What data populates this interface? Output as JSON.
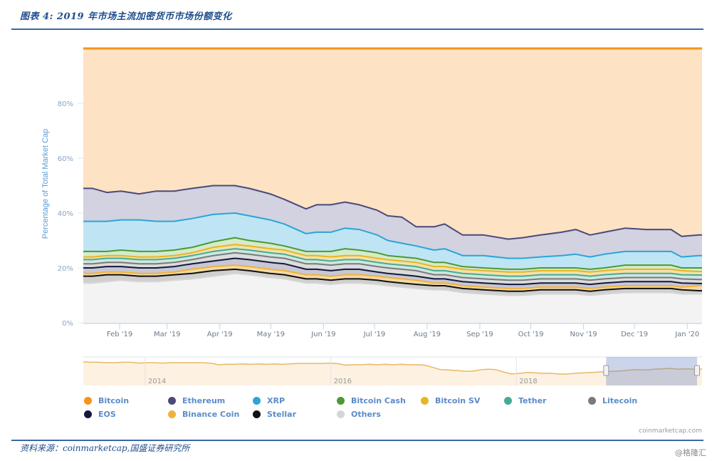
{
  "header": {
    "figure_title": "图表 4: 2019 年市场主流加密货币市场份额变化"
  },
  "footer": {
    "source": "资料来源：coinmarketcap,国盛证券研究所",
    "credit": "coinmarketcap.com",
    "watermark": "@格隆汇"
  },
  "chart_data": {
    "type": "area",
    "stacking": "percent",
    "title": "",
    "xlabel": "",
    "ylabel": "Percentage of Total Market Cap",
    "ylim": [
      0,
      100
    ],
    "yticks": [
      "0%",
      "20%",
      "40%",
      "60%",
      "80%"
    ],
    "y_tick_values": [
      0,
      20,
      40,
      60,
      80
    ],
    "grid": true,
    "legend_position": "bottom",
    "x_range": [
      "2019-01-15",
      "2020-01-08"
    ],
    "xticks": [
      "Feb '19",
      "Mar '19",
      "Apr '19",
      "May '19",
      "Jun '19",
      "Jul '19",
      "Aug '19",
      "Sep '19",
      "Oct '19",
      "Nov '19",
      "Dec '19",
      "Jan '20"
    ],
    "x_tick_positions": [
      0.0588,
      0.1355,
      0.2206,
      0.303,
      0.3882,
      0.4706,
      0.5557,
      0.6409,
      0.7233,
      0.8085,
      0.8908,
      0.9761
    ],
    "x": [
      0.015,
      0.038,
      0.061,
      0.09,
      0.118,
      0.147,
      0.176,
      0.21,
      0.245,
      0.268,
      0.302,
      0.325,
      0.36,
      0.377,
      0.4,
      0.423,
      0.446,
      0.475,
      0.492,
      0.515,
      0.538,
      0.567,
      0.584,
      0.613,
      0.647,
      0.687,
      0.71,
      0.739,
      0.773,
      0.796,
      0.819,
      0.842,
      0.876,
      0.91,
      0.95,
      0.967,
      0.995
    ],
    "series_order_bottom_to_top": [
      "Others",
      "Stellar",
      "Binance Coin",
      "EOS",
      "Litecoin",
      "Tether",
      "Bitcoin SV",
      "Bitcoin Cash",
      "XRP",
      "Ethereum",
      "Bitcoin"
    ],
    "cumulative_tops": {
      "Others": [
        14.5,
        15.0,
        15.5,
        15.0,
        15.0,
        15.5,
        16.0,
        17.0,
        18.0,
        17.5,
        16.5,
        16.0,
        14.5,
        14.5,
        14.0,
        14.5,
        14.5,
        14.0,
        13.5,
        13.0,
        12.5,
        12.0,
        12.0,
        11.0,
        10.5,
        10.0,
        10.0,
        10.5,
        10.5,
        10.5,
        10.0,
        10.5,
        11.0,
        11.0,
        11.0,
        10.5,
        10.5
      ],
      "Stellar": [
        17.0,
        17.5,
        17.5,
        17.0,
        17.0,
        17.5,
        18.0,
        19.0,
        19.5,
        19.0,
        18.0,
        17.5,
        16.0,
        16.0,
        15.5,
        16.0,
        16.0,
        15.5,
        15.0,
        14.5,
        14.0,
        13.5,
        13.5,
        12.5,
        12.0,
        11.5,
        11.5,
        12.0,
        12.0,
        12.0,
        11.5,
        12.0,
        12.5,
        12.5,
        12.5,
        12.0,
        11.7
      ],
      "Binance Coin": [
        18.0,
        18.5,
        18.5,
        18.0,
        18.0,
        18.5,
        19.5,
        20.5,
        21.0,
        20.5,
        19.5,
        19.0,
        17.5,
        17.5,
        17.0,
        17.5,
        17.5,
        17.0,
        16.5,
        16.0,
        15.5,
        14.5,
        14.5,
        13.5,
        13.0,
        12.5,
        12.5,
        13.0,
        13.0,
        13.0,
        12.5,
        13.0,
        13.5,
        13.5,
        13.5,
        13.0,
        13.5
      ],
      "EOS": [
        20.0,
        20.5,
        20.5,
        20.0,
        20.0,
        20.5,
        21.5,
        22.5,
        23.5,
        23.0,
        22.0,
        21.5,
        19.5,
        19.5,
        19.0,
        19.5,
        19.5,
        18.5,
        18.0,
        17.5,
        17.0,
        16.0,
        16.0,
        15.0,
        14.5,
        14.0,
        14.0,
        14.5,
        14.5,
        14.5,
        14.0,
        14.5,
        15.0,
        15.0,
        15.0,
        14.5,
        14.3
      ],
      "Litecoin": [
        21.5,
        22.0,
        22.0,
        21.5,
        21.5,
        22.0,
        23.0,
        24.5,
        25.5,
        25.0,
        24.0,
        23.5,
        21.5,
        21.5,
        21.0,
        21.5,
        21.5,
        20.5,
        20.0,
        19.5,
        19.0,
        17.5,
        17.5,
        16.5,
        16.0,
        15.5,
        15.5,
        16.0,
        16.0,
        16.0,
        15.5,
        16.0,
        16.5,
        16.5,
        16.5,
        16.0,
        15.8
      ],
      "Tether": [
        23.0,
        23.5,
        23.5,
        23.0,
        23.0,
        23.5,
        24.5,
        26.0,
        27.0,
        26.5,
        25.5,
        25.0,
        23.0,
        23.0,
        22.5,
        23.0,
        23.0,
        22.0,
        21.5,
        21.0,
        20.5,
        19.0,
        19.0,
        18.0,
        17.5,
        17.0,
        17.0,
        17.5,
        17.5,
        17.5,
        17.0,
        17.5,
        18.0,
        18.0,
        18.0,
        17.5,
        17.4
      ],
      "Bitcoin SV": [
        24.0,
        24.5,
        24.5,
        24.0,
        24.0,
        24.5,
        25.5,
        27.5,
        28.5,
        28.0,
        27.0,
        26.5,
        24.5,
        24.5,
        24.0,
        24.5,
        24.5,
        23.5,
        23.0,
        22.5,
        22.0,
        20.5,
        20.5,
        19.5,
        19.0,
        18.5,
        18.5,
        19.0,
        19.0,
        19.0,
        18.5,
        19.0,
        19.5,
        19.5,
        19.5,
        19.0,
        18.7
      ],
      "Bitcoin Cash": [
        26.0,
        26.0,
        26.5,
        26.0,
        26.0,
        26.5,
        27.5,
        29.5,
        31.0,
        30.0,
        29.0,
        28.0,
        26.0,
        26.0,
        26.0,
        27.0,
        26.5,
        25.5,
        24.5,
        24.0,
        23.5,
        22.0,
        22.0,
        20.5,
        20.0,
        19.5,
        19.5,
        20.0,
        20.0,
        20.0,
        19.5,
        20.0,
        21.0,
        21.0,
        21.0,
        20.0,
        20.0
      ],
      "XRP": [
        37.0,
        37.0,
        37.5,
        37.5,
        37.0,
        37.0,
        38.0,
        39.5,
        40.0,
        39.0,
        37.5,
        36.0,
        32.5,
        33.0,
        33.0,
        34.5,
        34.0,
        32.0,
        30.0,
        29.0,
        28.0,
        26.5,
        27.0,
        24.5,
        24.5,
        23.5,
        23.5,
        24.0,
        24.5,
        25.0,
        24.0,
        25.0,
        26.0,
        26.0,
        26.0,
        24.0,
        24.5
      ],
      "Ethereum": [
        49.0,
        47.5,
        48.0,
        47.0,
        48.0,
        48.0,
        49.0,
        50.0,
        50.0,
        49.0,
        47.0,
        45.0,
        41.5,
        43.0,
        43.0,
        44.0,
        43.0,
        41.0,
        39.0,
        38.5,
        35.0,
        35.0,
        36.0,
        32.0,
        32.0,
        30.5,
        31.0,
        32.0,
        33.0,
        34.0,
        32.0,
        33.0,
        34.5,
        34.0,
        34.0,
        31.5,
        32.0
      ],
      "Bitcoin": [
        100,
        100,
        100,
        100,
        100,
        100,
        100,
        100,
        100,
        100,
        100,
        100,
        100,
        100,
        100,
        100,
        100,
        100,
        100,
        100,
        100,
        100,
        100,
        100,
        100,
        100,
        100,
        100,
        100,
        100,
        100,
        100,
        100,
        100,
        100,
        100,
        100
      ]
    },
    "series": [
      {
        "name": "Bitcoin",
        "color": "#f7931a",
        "fill": "#fde2c4"
      },
      {
        "name": "Ethereum",
        "color": "#4a4a7a",
        "fill": "#d2d2e0"
      },
      {
        "name": "XRP",
        "color": "#2ba5d6",
        "fill": "#bfe5f5"
      },
      {
        "name": "Bitcoin Cash",
        "color": "#4a9a34",
        "fill": "#d5ebcb"
      },
      {
        "name": "Bitcoin SV",
        "color": "#e8b423",
        "fill": "#f5e1a8"
      },
      {
        "name": "Tether",
        "color": "#46ab95",
        "fill": "#cde8e1"
      },
      {
        "name": "Litecoin",
        "color": "#7a7a7a",
        "fill": "#dcdcdc"
      },
      {
        "name": "EOS",
        "color": "#15183d",
        "fill": "#c7c8d6"
      },
      {
        "name": "Binance Coin",
        "color": "#f0b23c",
        "fill": "#f4d9a4"
      },
      {
        "name": "Stellar",
        "color": "#111111",
        "fill": "#cfcfcf"
      },
      {
        "name": "Others",
        "color": "#d6d6d6",
        "fill": "#f3f3f3"
      }
    ],
    "legend": [
      {
        "name": "Bitcoin",
        "color": "#f7931a"
      },
      {
        "name": "Ethereum",
        "color": "#4a4a7a"
      },
      {
        "name": "XRP",
        "color": "#2ba5d6"
      },
      {
        "name": "Bitcoin Cash",
        "color": "#4a9a34"
      },
      {
        "name": "Bitcoin SV",
        "color": "#e8b423"
      },
      {
        "name": "Tether",
        "color": "#46ab95"
      },
      {
        "name": "Litecoin",
        "color": "#7a7a7a"
      },
      {
        "name": "EOS",
        "color": "#15183d"
      },
      {
        "name": "Binance Coin",
        "color": "#f0b23c"
      },
      {
        "name": "Stellar",
        "color": "#111111"
      },
      {
        "name": "Others",
        "color": "#d6d6d6"
      }
    ],
    "navigator": {
      "ticks": [
        "2014",
        "2016",
        "2018"
      ],
      "tick_positions": [
        0.1,
        0.4,
        0.7
      ],
      "selection": [
        0.845,
        1.0
      ],
      "btc_share_series": [
        88,
        87,
        87,
        86,
        86,
        87,
        87,
        85,
        86,
        86,
        85,
        86,
        86,
        86,
        86,
        86,
        85,
        81,
        82,
        82,
        83,
        82,
        83,
        82,
        83,
        82,
        83,
        84,
        84,
        84,
        84,
        85,
        84,
        80,
        81,
        81,
        82,
        81,
        82,
        81,
        82,
        81,
        81,
        80,
        75,
        69,
        68,
        67,
        65,
        65,
        68,
        70,
        69,
        63,
        58,
        60,
        62,
        61,
        60,
        60,
        58,
        58,
        60,
        61,
        62,
        63,
        64,
        65,
        66,
        68,
        69,
        68,
        70,
        71,
        72,
        70,
        71,
        70,
        70
      ]
    }
  }
}
